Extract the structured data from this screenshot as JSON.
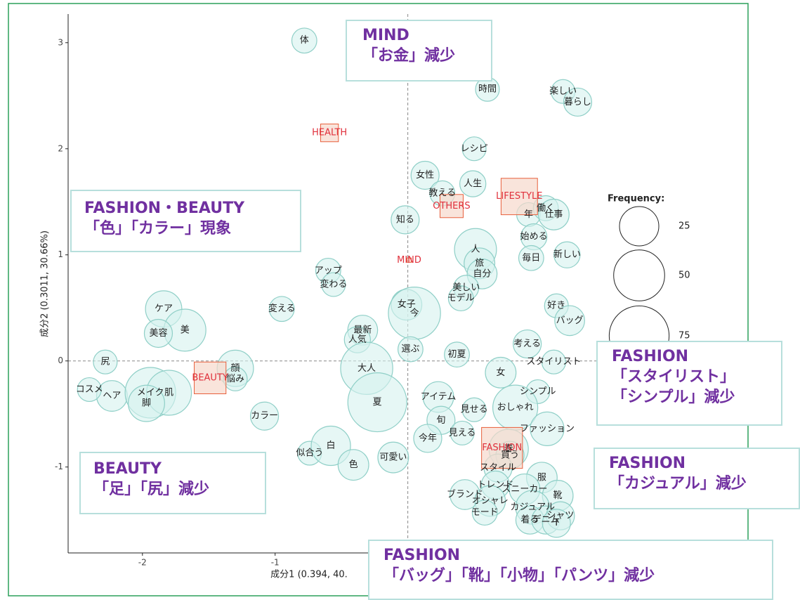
{
  "chart_data": {
    "type": "scatter",
    "x_label": "成分1 (0.394, 40.",
    "y_label": "成分2 (0.3011, 30.66%)",
    "xlim": [
      -2.56,
      1.5
    ],
    "ylim": [
      -1.81,
      3.27
    ],
    "xticks": [
      -2,
      -1,
      0,
      1
    ],
    "yticks": [
      -1,
      0,
      1,
      2,
      3
    ],
    "hline": 0,
    "vline": 0,
    "point_color": "#d6f1ee",
    "point_stroke": "#8fcfc7",
    "category_color": "#f7d9cc",
    "category_stroke": "#e8603c",
    "category_label_color": "#e0303c",
    "legend": {
      "title": "Frequency:",
      "sizes": [
        25,
        50,
        75
      ]
    },
    "points": [
      {
        "label": "体",
        "x": -0.78,
        "y": 3.02,
        "size": 6
      },
      {
        "label": "時間",
        "x": 0.6,
        "y": 2.56,
        "size": 5
      },
      {
        "label": "楽しい",
        "x": 1.17,
        "y": 2.54,
        "size": 5
      },
      {
        "label": "暮らし",
        "x": 1.28,
        "y": 2.44,
        "size": 9
      },
      {
        "label": "レシピ",
        "x": 0.5,
        "y": 2.0,
        "size": 5
      },
      {
        "label": "女性",
        "x": 0.13,
        "y": 1.75,
        "size": 9
      },
      {
        "label": "教える",
        "x": 0.26,
        "y": 1.58,
        "size": 6
      },
      {
        "label": "人生",
        "x": 0.49,
        "y": 1.67,
        "size": 7
      },
      {
        "label": "知る",
        "x": -0.02,
        "y": 1.33,
        "size": 9
      },
      {
        "label": "年",
        "x": 0.91,
        "y": 1.38,
        "size": 5
      },
      {
        "label": "働く",
        "x": 1.04,
        "y": 1.44,
        "size": 6
      },
      {
        "label": "仕事",
        "x": 1.1,
        "y": 1.38,
        "size": 12
      },
      {
        "label": "始める",
        "x": 0.95,
        "y": 1.17,
        "size": 7
      },
      {
        "label": "毎日",
        "x": 0.93,
        "y": 0.97,
        "size": 6
      },
      {
        "label": "新しい",
        "x": 1.2,
        "y": 1.0,
        "size": 7
      },
      {
        "label": "人",
        "x": 0.51,
        "y": 1.05,
        "size": 30
      },
      {
        "label": "旅",
        "x": 0.54,
        "y": 0.92,
        "size": 12
      },
      {
        "label": "自分",
        "x": 0.56,
        "y": 0.82,
        "size": 11
      },
      {
        "label": "美しい",
        "x": 0.44,
        "y": 0.69,
        "size": 6
      },
      {
        "label": "モデル",
        "x": 0.4,
        "y": 0.59,
        "size": 6
      },
      {
        "label": "アップ",
        "x": -0.6,
        "y": 0.85,
        "size": 6
      },
      {
        "label": "変わる",
        "x": -0.56,
        "y": 0.72,
        "size": 5
      },
      {
        "label": "変える",
        "x": -0.95,
        "y": 0.49,
        "size": 6
      },
      {
        "label": "ケア",
        "x": -1.84,
        "y": 0.49,
        "size": 20
      },
      {
        "label": "美",
        "x": -1.68,
        "y": 0.29,
        "size": 30
      },
      {
        "label": "美容",
        "x": -1.88,
        "y": 0.26,
        "size": 9
      },
      {
        "label": "女子",
        "x": -0.01,
        "y": 0.53,
        "size": 12
      },
      {
        "label": "今",
        "x": 0.05,
        "y": 0.45,
        "size": 53
      },
      {
        "label": "最新",
        "x": -0.34,
        "y": 0.29,
        "size": 11
      },
      {
        "label": "人気",
        "x": -0.38,
        "y": 0.2,
        "size": 7
      },
      {
        "label": "選ぶ",
        "x": 0.02,
        "y": 0.11,
        "size": 6
      },
      {
        "label": "初夏",
        "x": 0.37,
        "y": 0.06,
        "size": 6
      },
      {
        "label": "考える",
        "x": 0.9,
        "y": 0.16,
        "size": 9
      },
      {
        "label": "好き",
        "x": 1.12,
        "y": 0.52,
        "size": 5
      },
      {
        "label": "バッグ",
        "x": 1.22,
        "y": 0.38,
        "size": 11
      },
      {
        "label": "大人",
        "x": -0.31,
        "y": -0.07,
        "size": 53
      },
      {
        "label": "顔",
        "x": -1.3,
        "y": -0.07,
        "size": 20
      },
      {
        "label": "尻",
        "x": -2.28,
        "y": -0.01,
        "size": 5
      },
      {
        "label": "ヘア",
        "x": -2.23,
        "y": -0.33,
        "size": 12
      },
      {
        "label": "コスメ",
        "x": -2.4,
        "y": -0.27,
        "size": 5
      },
      {
        "label": "メイク",
        "x": -1.94,
        "y": -0.3,
        "size": 49
      },
      {
        "label": "肌",
        "x": -1.8,
        "y": -0.3,
        "size": 36
      },
      {
        "label": "悩み",
        "x": -1.3,
        "y": -0.17,
        "size": 5
      },
      {
        "label": "脚",
        "x": -1.97,
        "y": -0.4,
        "size": 20
      },
      {
        "label": "カラー",
        "x": -1.08,
        "y": -0.52,
        "size": 9
      },
      {
        "label": "夏",
        "x": -0.23,
        "y": -0.39,
        "size": 72
      },
      {
        "label": "アイテム",
        "x": 0.23,
        "y": -0.34,
        "size": 12
      },
      {
        "label": "見せる",
        "x": 0.5,
        "y": -0.46,
        "size": 5
      },
      {
        "label": "旬",
        "x": 0.25,
        "y": -0.56,
        "size": 9
      },
      {
        "label": "見える",
        "x": 0.41,
        "y": -0.68,
        "size": 5
      },
      {
        "label": "今年",
        "x": 0.15,
        "y": -0.73,
        "size": 9
      },
      {
        "label": "似合う",
        "x": -0.74,
        "y": -0.87,
        "size": 5
      },
      {
        "label": "白",
        "x": -0.58,
        "y": -0.8,
        "size": 25
      },
      {
        "label": "色",
        "x": -0.41,
        "y": -0.98,
        "size": 12
      },
      {
        "label": "可愛い",
        "x": -0.11,
        "y": -0.91,
        "size": 12
      },
      {
        "label": "女",
        "x": 0.7,
        "y": -0.11,
        "size": 12
      },
      {
        "label": "スタイリスト",
        "x": 1.1,
        "y": -0.01,
        "size": 5
      },
      {
        "label": "シンプル",
        "x": 0.98,
        "y": -0.29,
        "size": 5
      },
      {
        "label": "おしゃれ",
        "x": 0.81,
        "y": -0.44,
        "size": 36
      },
      {
        "label": "ファッション",
        "x": 1.05,
        "y": -0.64,
        "size": 16
      },
      {
        "label": "春",
        "x": 0.76,
        "y": -0.83,
        "size": 25
      },
      {
        "label": "買う",
        "x": 0.77,
        "y": -0.89,
        "size": 9
      },
      {
        "label": "服",
        "x": 1.01,
        "y": -1.1,
        "size": 12
      },
      {
        "label": "スタイル",
        "x": 0.68,
        "y": -1.01,
        "size": 9
      },
      {
        "label": "トレンド",
        "x": 0.66,
        "y": -1.17,
        "size": 9
      },
      {
        "label": "スニーカー",
        "x": 0.88,
        "y": -1.21,
        "size": 12
      },
      {
        "label": "靴",
        "x": 1.13,
        "y": -1.27,
        "size": 12
      },
      {
        "label": "ブランド",
        "x": 0.43,
        "y": -1.26,
        "size": 11
      },
      {
        "label": "オシャレ",
        "x": 0.62,
        "y": -1.32,
        "size": 12
      },
      {
        "label": "モード",
        "x": 0.58,
        "y": -1.43,
        "size": 6
      },
      {
        "label": "カジュアル",
        "x": 0.94,
        "y": -1.38,
        "size": 16
      },
      {
        "label": "着る",
        "x": 0.92,
        "y": -1.5,
        "size": 9
      },
      {
        "label": "デニム",
        "x": 1.04,
        "y": -1.5,
        "size": 9
      },
      {
        "label": "シャツ",
        "x": 1.15,
        "y": -1.46,
        "size": 9
      },
      {
        "label": "T",
        "x": 1.12,
        "y": -1.53,
        "size": 9
      }
    ],
    "categories": [
      {
        "label": "HEALTH",
        "x": -0.59,
        "y": 2.15,
        "size": 10
      },
      {
        "label": "LIFESTYLE",
        "x": 0.84,
        "y": 1.55,
        "size": 42
      },
      {
        "label": "OTHERS",
        "x": 0.33,
        "y": 1.46,
        "size": 17
      },
      {
        "label": "MIND",
        "x": 0.01,
        "y": 0.95,
        "size": 0.6
      },
      {
        "label": "BEAUTY",
        "x": -1.49,
        "y": -0.16,
        "size": 32
      },
      {
        "label": "FASHION",
        "x": 0.71,
        "y": -0.82,
        "size": 53
      }
    ]
  },
  "annotations": [
    {
      "lines": [
        "MIND",
        "「お金」減少"
      ]
    },
    {
      "lines": [
        "FASHION・BEAUTY",
        "「色」「カラー」現象"
      ]
    },
    {
      "lines": [
        "BEAUTY",
        "「足」「尻」減少"
      ]
    },
    {
      "lines": [
        "FASHION",
        "「スタイリスト」",
        "「シンプル」減少"
      ]
    },
    {
      "lines": [
        "FASHION",
        "「カジュアル」減少"
      ]
    },
    {
      "lines": [
        "FASHION",
        "「バッグ」「靴」「小物」「パンツ」減少"
      ]
    }
  ]
}
